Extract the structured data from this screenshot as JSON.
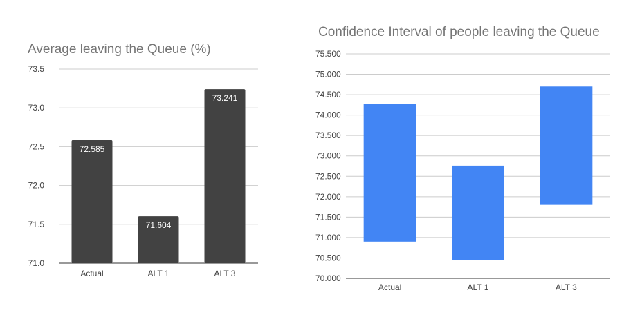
{
  "chart_data": [
    {
      "type": "bar",
      "title": "Average leaving the Queue (%)",
      "categories": [
        "Actual",
        "ALT 1",
        "ALT 3"
      ],
      "values": [
        72.585,
        71.604,
        73.241
      ],
      "data_labels": [
        "72.585",
        "71.604",
        "73.241"
      ],
      "ylim": [
        71.0,
        73.5
      ],
      "yticks": [
        71.0,
        71.5,
        72.0,
        72.5,
        73.0,
        73.5
      ],
      "ytick_labels": [
        "71.0",
        "71.5",
        "72.0",
        "72.5",
        "73.0",
        "73.5"
      ],
      "xlabel": "",
      "ylabel": "",
      "grid": true,
      "legend": "none",
      "color": "#424242"
    },
    {
      "type": "bar",
      "subtype": "floating-range",
      "title": "Confidence Interval of people leaving the Queue",
      "categories": [
        "Actual",
        "ALT 1",
        "ALT 3"
      ],
      "ranges": [
        [
          70.9,
          74.28
        ],
        [
          70.45,
          72.76
        ],
        [
          71.8,
          74.7
        ]
      ],
      "ylim": [
        70.0,
        75.5
      ],
      "yticks": [
        70.0,
        70.5,
        71.0,
        71.5,
        72.0,
        72.5,
        73.0,
        73.5,
        74.0,
        74.5,
        75.0,
        75.5
      ],
      "ytick_labels": [
        "70.000",
        "70.500",
        "71.000",
        "71.500",
        "72.000",
        "72.500",
        "73.000",
        "73.500",
        "74.000",
        "74.500",
        "75.000",
        "75.500"
      ],
      "xlabel": "",
      "ylabel": "",
      "grid": true,
      "legend": "none",
      "color": "#4285f4"
    }
  ]
}
